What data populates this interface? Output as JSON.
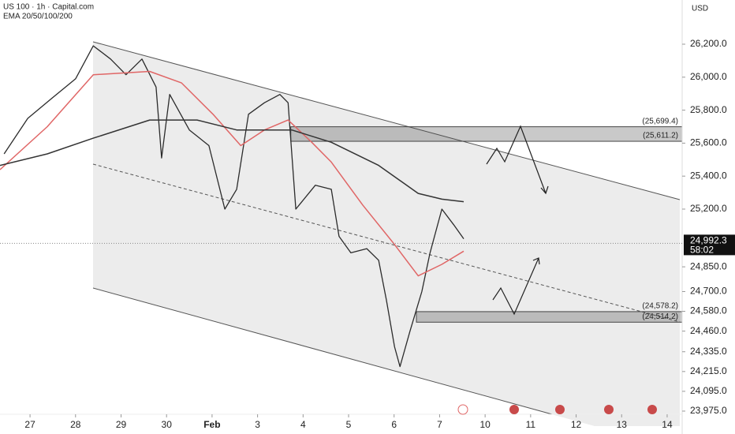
{
  "header": {
    "symbol": "US 100 · 1h · Capital.com",
    "indicator": "EMA 20/50/100/200",
    "currency": "USD"
  },
  "chart_data": {
    "type": "line",
    "xlim": [
      -0.66,
      14.33
    ],
    "xticks": [
      {
        "value": 0,
        "label": "27"
      },
      {
        "value": 1,
        "label": "28"
      },
      {
        "value": 2,
        "label": "29"
      },
      {
        "value": 3,
        "label": "30"
      },
      {
        "value": 4,
        "label": "Feb"
      },
      {
        "value": 5,
        "label": "3"
      },
      {
        "value": 6,
        "label": "4"
      },
      {
        "value": 7,
        "label": "5"
      },
      {
        "value": 8,
        "label": "6"
      },
      {
        "value": 9,
        "label": "7"
      },
      {
        "value": 10,
        "label": "10"
      },
      {
        "value": 11,
        "label": "11"
      },
      {
        "value": 12,
        "label": "12"
      },
      {
        "value": 13,
        "label": "13"
      },
      {
        "value": 14,
        "label": "14"
      }
    ],
    "ylim": [
      23884,
      26468
    ],
    "yticks": [
      {
        "value": 26200,
        "label": "26,200.0"
      },
      {
        "value": 26000,
        "label": "26,000.0"
      },
      {
        "value": 25800,
        "label": "25,800.0"
      },
      {
        "value": 25600,
        "label": "25,600.0"
      },
      {
        "value": 25400,
        "label": "25,400.0"
      },
      {
        "value": 25200,
        "label": "25,200.0"
      },
      {
        "value": 24850,
        "label": "24,850.0"
      },
      {
        "value": 24700,
        "label": "24,700.0"
      },
      {
        "value": 24580,
        "label": "24,580.0"
      },
      {
        "value": 24460,
        "label": "24,460.0"
      },
      {
        "value": 24335,
        "label": "24,335.0"
      },
      {
        "value": 24215,
        "label": "24,215.0"
      },
      {
        "value": 24095,
        "label": "24,095.0"
      },
      {
        "value": 23975,
        "label": "23,975.0"
      }
    ],
    "series": [
      {
        "color": "#2b2b2b",
        "width": 1.3,
        "x": [
          -0.57,
          -0.05,
          0.47,
          1.0,
          1.39,
          1.77,
          2.11,
          2.46,
          2.77,
          2.89,
          3.07,
          3.5,
          3.93,
          4.28,
          4.54,
          4.8,
          5.15,
          5.49,
          5.67,
          5.84,
          6.27,
          6.62,
          6.79,
          7.05,
          7.4,
          7.66,
          7.83,
          8.01,
          8.13,
          8.35,
          8.61,
          8.79,
          9.05,
          9.31,
          9.53
        ],
        "values": [
          25535,
          25750,
          25870,
          25990,
          26190,
          26110,
          26015,
          26110,
          25940,
          25510,
          25895,
          25680,
          25585,
          25200,
          25320,
          25775,
          25845,
          25895,
          25845,
          25200,
          25345,
          25320,
          25035,
          24935,
          24960,
          24890,
          24650,
          24365,
          24245,
          24460,
          24700,
          24935,
          25200,
          25105,
          25020
        ]
      },
      {
        "color": "#e06666",
        "width": 1.5,
        "x": [
          -0.66,
          0.38,
          1.39,
          2.63,
          3.33,
          4.02,
          4.63,
          5.15,
          5.67,
          6.19,
          6.62,
          7.31,
          8.01,
          8.53,
          9.05,
          9.53
        ],
        "values": [
          25439,
          25700,
          26015,
          26035,
          25965,
          25775,
          25585,
          25680,
          25740,
          25605,
          25485,
          25225,
          24985,
          24795,
          24865,
          24945
        ]
      },
      {
        "color": "#333333",
        "width": 1.5,
        "x": [
          -0.66,
          0.38,
          1.39,
          2.63,
          3.67,
          4.54,
          5.75,
          6.62,
          7.66,
          8.53,
          9.05,
          9.53
        ],
        "values": [
          25465,
          25535,
          25630,
          25740,
          25740,
          25680,
          25680,
          25605,
          25465,
          25295,
          25260,
          25245
        ]
      }
    ],
    "zones": [
      {
        "top": 25699.4,
        "top_label": "(25,699.4)",
        "bottom": 25611.2,
        "bottom_label": "(25,611.2)",
        "start": 5.73
      },
      {
        "top": 24578.2,
        "top_label": "(24,578.2)",
        "bottom": 24514.2,
        "bottom_label": "(24,514.2)",
        "start": 8.49
      }
    ],
    "last_price": {
      "value": 24992.3,
      "label": "24,992.3",
      "countdown": "58:02"
    }
  }
}
